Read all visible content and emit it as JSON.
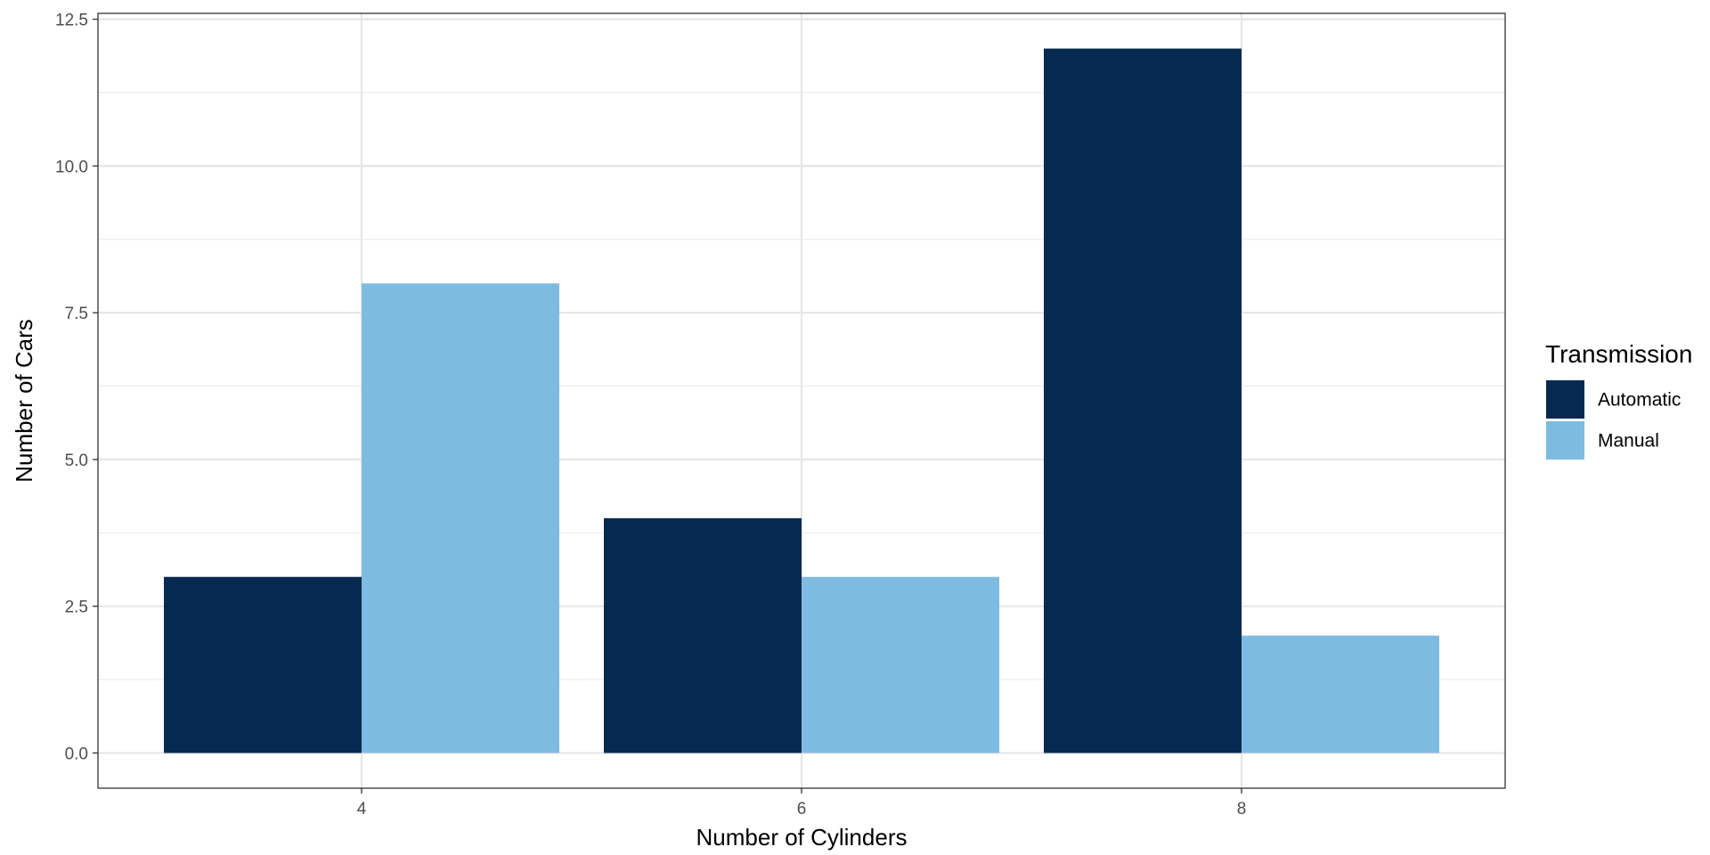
{
  "chart_data": {
    "type": "bar",
    "xlabel": "Number of Cylinders",
    "ylabel": "Number of Cars",
    "categories": [
      "4",
      "6",
      "8"
    ],
    "series": [
      {
        "name": "Automatic",
        "color": "#06294f",
        "values": [
          3,
          4,
          12
        ]
      },
      {
        "name": "Manual",
        "color": "#7ebbe1",
        "values": [
          8,
          3,
          2
        ]
      }
    ],
    "ylim": [
      -0.6,
      12.6
    ],
    "yticks": [
      "0.0",
      "2.5",
      "5.0",
      "7.5",
      "10.0",
      "12.5"
    ],
    "grid": true,
    "legend": {
      "title": "Transmission",
      "placement": "right"
    }
  }
}
